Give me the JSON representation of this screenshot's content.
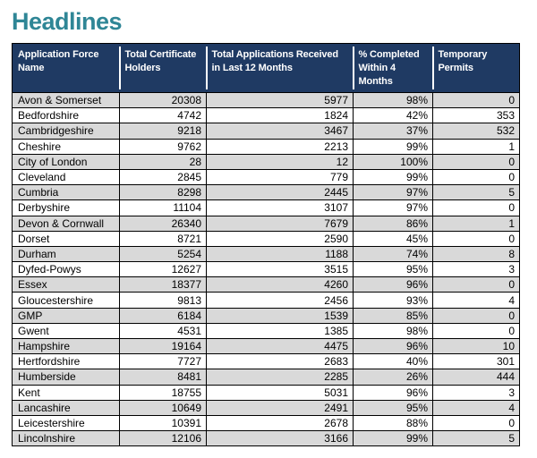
{
  "page": {
    "title": "Headlines"
  },
  "colors": {
    "title_text": "#2F8696",
    "header_bg": "#1F3A63",
    "header_text": "#FFFFFF",
    "row_alt_bg": "#D9D9D9",
    "row_bg": "#FFFFFF",
    "grid_border": "#000000"
  },
  "table": {
    "columns": [
      "Application Force\nName",
      "Total Certificate\nHolders",
      "Total Applications Received\nin Last 12 Months",
      "% Completed\nWithin 4 Months",
      "Temporary\nPermits"
    ],
    "rows": [
      [
        "Avon & Somerset",
        "20308",
        "5977",
        "98%",
        "0"
      ],
      [
        "Bedfordshire",
        "4742",
        "1824",
        "42%",
        "353"
      ],
      [
        "Cambridgeshire",
        "9218",
        "3467",
        "37%",
        "532"
      ],
      [
        "Cheshire",
        "9762",
        "2213",
        "99%",
        "1"
      ],
      [
        "City of London",
        "28",
        "12",
        "100%",
        "0"
      ],
      [
        "Cleveland",
        "2845",
        "779",
        "99%",
        "0"
      ],
      [
        "Cumbria",
        "8298",
        "2445",
        "97%",
        "5"
      ],
      [
        "Derbyshire",
        "11104",
        "3107",
        "97%",
        "0"
      ],
      [
        "Devon & Cornwall",
        "26340",
        "7679",
        "86%",
        "1"
      ],
      [
        "Dorset",
        "8721",
        "2590",
        "45%",
        "0"
      ],
      [
        "Durham",
        "5254",
        "1188",
        "74%",
        "8"
      ],
      [
        "Dyfed-Powys",
        "12627",
        "3515",
        "95%",
        "3"
      ],
      [
        "Essex",
        "18377",
        "4260",
        "96%",
        "0"
      ],
      [
        "Gloucestershire",
        "9813",
        "2456",
        "93%",
        "4"
      ],
      [
        "GMP",
        "6184",
        "1539",
        "85%",
        "0"
      ],
      [
        "Gwent",
        "4531",
        "1385",
        "98%",
        "0"
      ],
      [
        "Hampshire",
        "19164",
        "4475",
        "96%",
        "10"
      ],
      [
        "Hertfordshire",
        "7727",
        "2683",
        "40%",
        "301"
      ],
      [
        "Humberside",
        "8481",
        "2285",
        "26%",
        "444"
      ],
      [
        "Kent",
        "18755",
        "5031",
        "96%",
        "3"
      ],
      [
        "Lancashire",
        "10649",
        "2491",
        "95%",
        "4"
      ],
      [
        "Leicestershire",
        "10391",
        "2678",
        "88%",
        "0"
      ],
      [
        "Lincolnshire",
        "12106",
        "3166",
        "99%",
        "5"
      ]
    ]
  }
}
